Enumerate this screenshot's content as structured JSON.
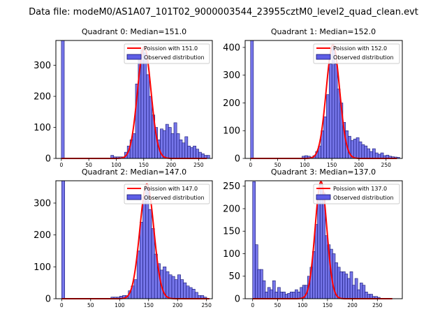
{
  "figure": {
    "suptitle": "Data file: modeM0/AS1A07_101T02_9000003544_23955cztM0_level2_quad_clean.evt",
    "bar_color": "#5e5ee6",
    "bar_edge_color": "#14146e",
    "fit_color": "#ff0000"
  },
  "chart_data": [
    {
      "type": "bar",
      "title": "Quadrant 0: Median=151.0",
      "legend": [
        "Poission with 151.0",
        "Observed distribution"
      ],
      "xlim": [
        -10,
        275
      ],
      "ylim": [
        0,
        380
      ],
      "xticks": [
        0,
        50,
        100,
        150,
        200,
        250
      ],
      "yticks": [
        0,
        100,
        200,
        300
      ],
      "bin_width": 5.3,
      "bars": [
        [
          0,
          380
        ],
        [
          90,
          10
        ],
        [
          95,
          5
        ],
        [
          100,
          5
        ],
        [
          105,
          5
        ],
        [
          110,
          5
        ],
        [
          115,
          20
        ],
        [
          120,
          40
        ],
        [
          125,
          60
        ],
        [
          130,
          80
        ],
        [
          135,
          240
        ],
        [
          140,
          320
        ],
        [
          145,
          350
        ],
        [
          150,
          340
        ],
        [
          155,
          270
        ],
        [
          160,
          200
        ],
        [
          165,
          140
        ],
        [
          170,
          100
        ],
        [
          175,
          60
        ],
        [
          180,
          95
        ],
        [
          185,
          90
        ],
        [
          190,
          110
        ],
        [
          195,
          100
        ],
        [
          200,
          80
        ],
        [
          205,
          115
        ],
        [
          210,
          80
        ],
        [
          215,
          60
        ],
        [
          220,
          50
        ],
        [
          225,
          70
        ],
        [
          230,
          40
        ],
        [
          235,
          35
        ],
        [
          240,
          40
        ],
        [
          245,
          30
        ],
        [
          250,
          20
        ],
        [
          255,
          15
        ],
        [
          260,
          10
        ],
        [
          265,
          10
        ]
      ],
      "fit": {
        "mean": 151,
        "sigma": 12.29,
        "peak": 360,
        "x_min": 0,
        "x_max": 265
      }
    },
    {
      "type": "bar",
      "title": "Quadrant 1: Median=152.0",
      "legend": [
        "Poission with 152.0",
        "Observed distribution"
      ],
      "xlim": [
        -10,
        280
      ],
      "ylim": [
        0,
        425
      ],
      "xticks": [
        0,
        50,
        100,
        150,
        200,
        250
      ],
      "yticks": [
        0,
        100,
        200,
        300,
        400
      ],
      "bin_width": 5.3,
      "bars": [
        [
          0,
          425
        ],
        [
          95,
          8
        ],
        [
          100,
          10
        ],
        [
          105,
          8
        ],
        [
          110,
          5
        ],
        [
          115,
          10
        ],
        [
          120,
          25
        ],
        [
          125,
          45
        ],
        [
          130,
          100
        ],
        [
          135,
          150
        ],
        [
          140,
          230
        ],
        [
          145,
          340
        ],
        [
          150,
          400
        ],
        [
          155,
          340
        ],
        [
          160,
          250
        ],
        [
          165,
          200
        ],
        [
          170,
          130
        ],
        [
          175,
          100
        ],
        [
          180,
          80
        ],
        [
          185,
          65
        ],
        [
          190,
          70
        ],
        [
          195,
          75
        ],
        [
          200,
          60
        ],
        [
          205,
          50
        ],
        [
          210,
          45
        ],
        [
          215,
          35
        ],
        [
          220,
          25
        ],
        [
          225,
          35
        ],
        [
          230,
          20
        ],
        [
          235,
          15
        ],
        [
          240,
          20
        ],
        [
          245,
          10
        ],
        [
          250,
          12
        ],
        [
          255,
          8
        ],
        [
          260,
          6
        ],
        [
          265,
          5
        ],
        [
          270,
          4
        ]
      ],
      "fit": {
        "mean": 152,
        "sigma": 12.33,
        "peak": 410,
        "x_min": 0,
        "x_max": 270
      }
    },
    {
      "type": "bar",
      "title": "Quadrant 2: Median=147.0",
      "legend": [
        "Poission with 147.0",
        "Observed distribution"
      ],
      "xlim": [
        -10,
        260
      ],
      "ylim": [
        0,
        370
      ],
      "xticks": [
        0,
        50,
        100,
        150,
        200,
        250
      ],
      "yticks": [
        0,
        100,
        200,
        300
      ],
      "bin_width": 5.3,
      "bars": [
        [
          0,
          370
        ],
        [
          85,
          5
        ],
        [
          90,
          5
        ],
        [
          95,
          5
        ],
        [
          100,
          8
        ],
        [
          105,
          10
        ],
        [
          110,
          10
        ],
        [
          115,
          25
        ],
        [
          120,
          40
        ],
        [
          125,
          60
        ],
        [
          130,
          150
        ],
        [
          135,
          240
        ],
        [
          140,
          320
        ],
        [
          145,
          350
        ],
        [
          150,
          280
        ],
        [
          155,
          220
        ],
        [
          160,
          140
        ],
        [
          165,
          110
        ],
        [
          170,
          90
        ],
        [
          175,
          100
        ],
        [
          180,
          85
        ],
        [
          185,
          75
        ],
        [
          190,
          70
        ],
        [
          195,
          60
        ],
        [
          200,
          75
        ],
        [
          205,
          60
        ],
        [
          210,
          50
        ],
        [
          215,
          40
        ],
        [
          220,
          35
        ],
        [
          225,
          30
        ],
        [
          230,
          20
        ],
        [
          235,
          10
        ],
        [
          240,
          10
        ],
        [
          245,
          5
        ]
      ],
      "fit": {
        "mean": 147,
        "sigma": 12.12,
        "peak": 360,
        "x_min": 0,
        "x_max": 255
      }
    },
    {
      "type": "bar",
      "title": "Quadrant 3: Median=137.0",
      "legend": [
        "Poission with 137.0",
        "Observed distribution"
      ],
      "xlim": [
        -15,
        300
      ],
      "ylim": [
        0,
        262
      ],
      "xticks": [
        0,
        50,
        100,
        150,
        200,
        250
      ],
      "yticks": [
        0,
        50,
        100,
        150,
        200,
        250
      ],
      "bin_width": 5.6,
      "bars": [
        [
          0,
          260
        ],
        [
          5,
          120
        ],
        [
          10,
          65
        ],
        [
          15,
          65
        ],
        [
          20,
          40
        ],
        [
          25,
          15
        ],
        [
          30,
          25
        ],
        [
          35,
          20
        ],
        [
          40,
          40
        ],
        [
          45,
          15
        ],
        [
          50,
          25
        ],
        [
          55,
          15
        ],
        [
          60,
          15
        ],
        [
          65,
          10
        ],
        [
          70,
          12
        ],
        [
          75,
          15
        ],
        [
          80,
          15
        ],
        [
          85,
          20
        ],
        [
          90,
          15
        ],
        [
          95,
          25
        ],
        [
          100,
          30
        ],
        [
          105,
          30
        ],
        [
          110,
          50
        ],
        [
          115,
          70
        ],
        [
          120,
          105
        ],
        [
          125,
          165
        ],
        [
          130,
          230
        ],
        [
          135,
          255
        ],
        [
          140,
          235
        ],
        [
          145,
          140
        ],
        [
          150,
          120
        ],
        [
          155,
          110
        ],
        [
          160,
          100
        ],
        [
          165,
          80
        ],
        [
          170,
          70
        ],
        [
          175,
          60
        ],
        [
          180,
          60
        ],
        [
          185,
          55
        ],
        [
          190,
          45
        ],
        [
          195,
          60
        ],
        [
          200,
          30
        ],
        [
          205,
          45
        ],
        [
          210,
          20
        ],
        [
          215,
          35
        ],
        [
          220,
          30
        ],
        [
          225,
          15
        ],
        [
          230,
          10
        ],
        [
          235,
          10
        ],
        [
          240,
          5
        ],
        [
          245,
          5
        ],
        [
          250,
          3
        ]
      ],
      "fit": {
        "mean": 137,
        "sigma": 11.7,
        "peak": 260,
        "x_min": 0,
        "x_max": 280
      }
    }
  ]
}
